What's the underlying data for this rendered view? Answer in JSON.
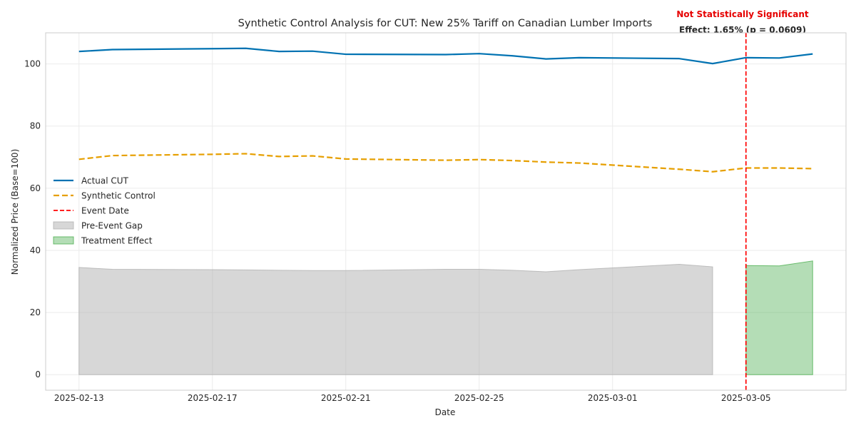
{
  "chart_data": {
    "type": "line",
    "title": "Synthetic Control Analysis for CUT: New 25% Tariff on Canadian Lumber Imports",
    "xlabel": "Date",
    "ylabel": "Normalized Price (Base=100)",
    "x_ticks": [
      "2025-02-13",
      "2025-02-17",
      "2025-02-21",
      "2025-02-25",
      "2025-03-01",
      "2025-03-05"
    ],
    "y_ticks": [
      0,
      20,
      40,
      60,
      80,
      100
    ],
    "xlim": [
      "2025-02-12",
      "2025-03-08"
    ],
    "ylim": [
      -5,
      110
    ],
    "grid": true,
    "legend_position": "center-left",
    "dates": [
      "2025-02-13",
      "2025-02-14",
      "2025-02-17",
      "2025-02-18",
      "2025-02-19",
      "2025-02-20",
      "2025-02-21",
      "2025-02-24",
      "2025-02-25",
      "2025-02-26",
      "2025-02-27",
      "2025-02-28",
      "2025-03-03",
      "2025-03-04",
      "2025-03-05",
      "2025-03-06",
      "2025-03-07"
    ],
    "series": [
      {
        "name": "Actual CUT",
        "color": "#0072B2",
        "style": "solid",
        "values": [
          104.0,
          104.6,
          104.9,
          105.0,
          104.0,
          104.1,
          103.1,
          103.0,
          103.3,
          102.6,
          101.6,
          102.0,
          101.7,
          100.1,
          102.0,
          101.9,
          103.2
        ]
      },
      {
        "name": "Synthetic Control",
        "color": "#E69F00",
        "style": "dashed",
        "values": [
          69.3,
          70.5,
          70.9,
          71.1,
          70.2,
          70.4,
          69.4,
          69.0,
          69.2,
          68.9,
          68.4,
          68.1,
          66.1,
          65.3,
          66.5,
          66.5,
          66.3
        ]
      }
    ],
    "event": {
      "name": "Event Date",
      "date": "2025-03-05",
      "color": "#FF0000"
    },
    "pre_event_gap": {
      "name": "Pre-Event Gap",
      "color": "#B0B0B0",
      "dates": [
        "2025-02-13",
        "2025-02-14",
        "2025-02-17",
        "2025-02-18",
        "2025-02-19",
        "2025-02-20",
        "2025-02-21",
        "2025-02-24",
        "2025-02-25",
        "2025-02-26",
        "2025-02-27",
        "2025-02-28",
        "2025-03-03",
        "2025-03-04"
      ],
      "values": [
        34.5,
        33.9,
        33.8,
        33.7,
        33.6,
        33.5,
        33.5,
        33.9,
        33.9,
        33.6,
        33.1,
        33.8,
        35.5,
        34.7
      ]
    },
    "treatment_effect": {
      "name": "Treatment Effect",
      "color": "#4CAF50",
      "dates": [
        "2025-03-05",
        "2025-03-06",
        "2025-03-07"
      ],
      "values": [
        35.1,
        35.0,
        36.6
      ]
    },
    "annotation": {
      "significance": "Not Statistically Significant",
      "effect": "Effect: 1.65% (p = 0.0609)"
    }
  }
}
